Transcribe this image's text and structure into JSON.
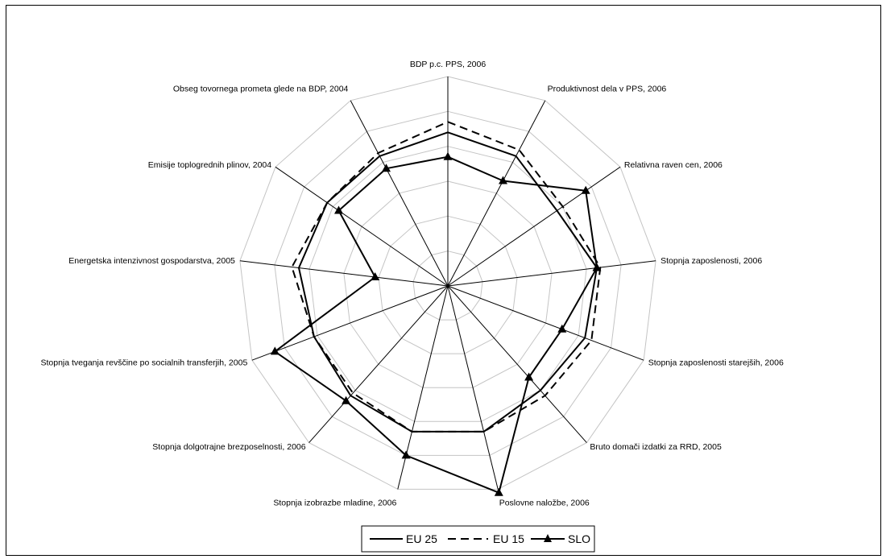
{
  "chart_data": {
    "type": "radar",
    "axes": [
      "BDP p.c. PPS, 2006",
      "Produktivnost dela v PPS, 2006",
      "Relativna raven cen, 2006",
      "Stopnja zaposlenosti, 2006",
      "Stopnja zaposlenosti starejših, 2006",
      "Bruto domači izdatki za RRD, 2005",
      "Poslovne naložbe, 2006",
      "Stopnja izobrazbe mladine, 2006",
      "Stopnja dolgotrajne brezposelnosti, 2006",
      "Stopnja tveganja revščine po socialnih transferjih, 2005",
      "Energetska intenzivnost gospodarstva, 2005",
      "Emisije toplogrednih plinov, 2004",
      "Obseg tovornega prometa glede na BDP, 2004"
    ],
    "rmax": 6,
    "rings": 6,
    "series": [
      {
        "name": "EU 25",
        "style": "solid",
        "marker": "none",
        "color": "#000000",
        "values": [
          4.4,
          4.2,
          3.8,
          4.3,
          4.2,
          4.0,
          4.3,
          4.3,
          4.2,
          4.1,
          4.3,
          4.2,
          4.2
        ]
      },
      {
        "name": "EU 15",
        "style": "dashed",
        "marker": "none",
        "color": "#000000",
        "values": [
          4.7,
          4.4,
          4.0,
          4.4,
          4.4,
          4.2,
          4.3,
          4.3,
          4.1,
          4.1,
          4.5,
          4.2,
          4.3
        ]
      },
      {
        "name": "SLO",
        "style": "solid",
        "marker": "triangle",
        "color": "#000000",
        "values": [
          3.7,
          3.4,
          4.8,
          4.3,
          3.5,
          3.5,
          6.1,
          5.0,
          4.4,
          5.3,
          2.1,
          3.8,
          3.8
        ]
      }
    ],
    "legend_position": "bottom",
    "grid": true
  }
}
